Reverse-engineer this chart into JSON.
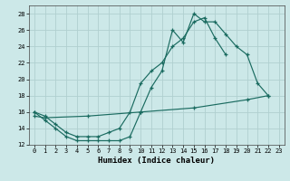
{
  "line1_x": [
    0,
    1,
    2,
    3,
    4,
    5,
    6,
    7,
    8,
    9,
    10,
    11,
    12,
    13,
    14,
    15,
    16,
    17,
    18,
    19,
    20,
    21,
    22
  ],
  "line1_y": [
    16,
    15,
    14,
    13,
    12.5,
    12.5,
    12.5,
    12.5,
    12.5,
    13,
    16,
    19,
    21,
    26,
    24.5,
    28,
    27,
    27,
    25.5,
    24,
    23,
    19.5,
    18
  ],
  "line2_x": [
    0,
    1,
    2,
    3,
    4,
    5,
    6,
    7,
    8,
    9,
    10,
    11,
    12,
    13,
    14,
    15,
    16,
    17,
    18
  ],
  "line2_y": [
    16,
    15.5,
    14.5,
    13.5,
    13,
    13,
    13,
    13.5,
    14,
    16,
    19.5,
    21,
    22,
    24,
    25,
    27,
    27.5,
    25,
    23
  ],
  "line3_x": [
    0,
    1,
    5,
    10,
    15,
    20,
    22
  ],
  "line3_y": [
    15.5,
    15.3,
    15.5,
    16.0,
    16.5,
    17.5,
    18
  ],
  "xlabel": "Humidex (Indice chaleur)",
  "bg_color": "#cce8e8",
  "grid_color": "#b0d0d0",
  "line_color": "#1a6b60",
  "xlim": [
    -0.5,
    23.5
  ],
  "ylim": [
    12,
    29
  ],
  "xticks": [
    0,
    1,
    2,
    3,
    4,
    5,
    6,
    7,
    8,
    9,
    10,
    11,
    12,
    13,
    14,
    15,
    16,
    17,
    18,
    19,
    20,
    21,
    22,
    23
  ],
  "yticks": [
    12,
    14,
    16,
    18,
    20,
    22,
    24,
    26,
    28
  ],
  "xlabel_fontsize": 6.5,
  "tick_fontsize": 5.0
}
